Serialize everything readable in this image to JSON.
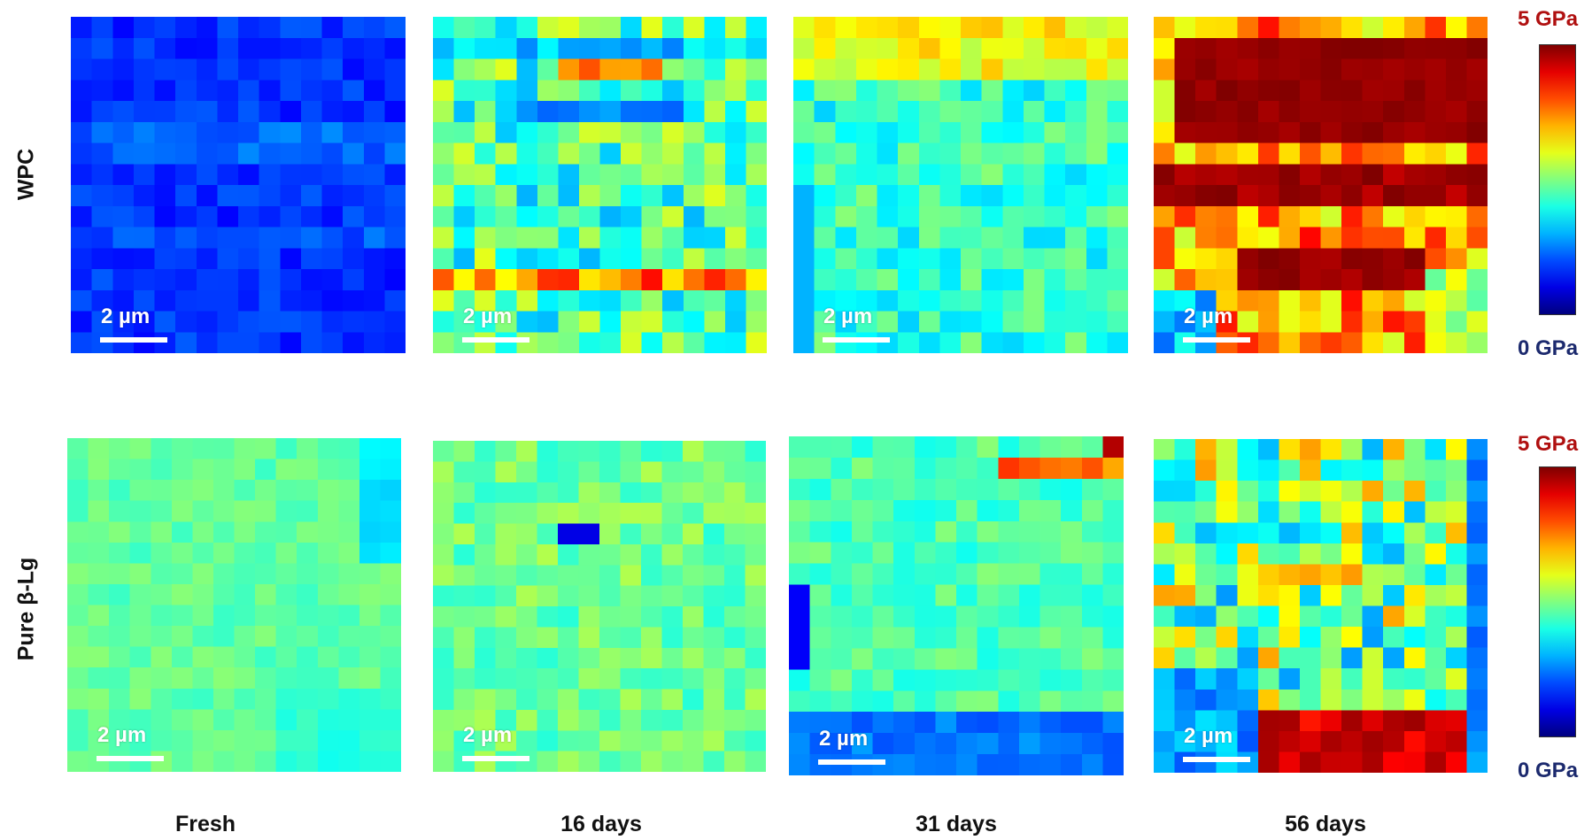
{
  "rows": [
    {
      "label": "WPC"
    },
    {
      "label": "Pure β-Lg"
    }
  ],
  "columns": [
    {
      "label": "Fresh"
    },
    {
      "label": "16 days"
    },
    {
      "label": "31 days"
    },
    {
      "label": "56 days"
    }
  ],
  "scale_bar": {
    "label": "2 µm"
  },
  "colorbar": {
    "max_label": "5 GPa",
    "min_label": "0 GPa",
    "max_color": "#b01010",
    "min_color": "#1c2a6e",
    "colormap": "jet"
  }
}
